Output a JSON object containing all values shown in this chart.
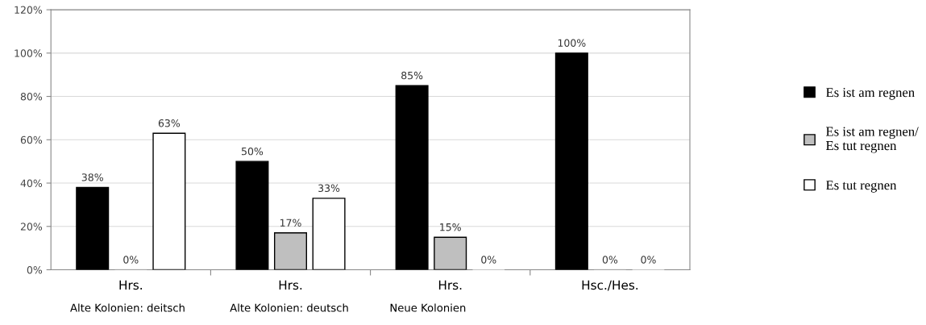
{
  "chart_data": {
    "type": "bar",
    "categories": [
      "Hrs.\nAlte Kolonien: deitsch",
      "Hrs.\nAlte Kolonien: deutsch",
      "Hrs.\nNeue Kolonien",
      "Hsc./Hes."
    ],
    "series": [
      {
        "name": "Es ist am regnen",
        "color": "#000000",
        "values": [
          38,
          50,
          85,
          100
        ],
        "value_labels": [
          "38%",
          "50%",
          "85%",
          "100%"
        ]
      },
      {
        "name": "Es ist am regnen/\nEs tut regnen",
        "color": "#bfbfbf",
        "values": [
          0,
          17,
          15,
          0
        ],
        "value_labels": [
          "0%",
          "17%",
          "15%",
          "0%"
        ]
      },
      {
        "name": "Es tut regnen",
        "color": "#ffffff",
        "values": [
          63,
          33,
          0,
          0
        ],
        "value_labels": [
          "63%",
          "33%",
          "0%",
          "0%"
        ]
      }
    ],
    "ylim": [
      0,
      120
    ],
    "yticks": [
      {
        "value": 0,
        "label": "0%"
      },
      {
        "value": 20,
        "label": "20%"
      },
      {
        "value": 40,
        "label": "40%"
      },
      {
        "value": 60,
        "label": "60%"
      },
      {
        "value": 80,
        "label": "80%"
      },
      {
        "value": 100,
        "label": "100%"
      },
      {
        "value": 120,
        "label": "120%"
      }
    ],
    "grid": "y",
    "legend": "right"
  }
}
